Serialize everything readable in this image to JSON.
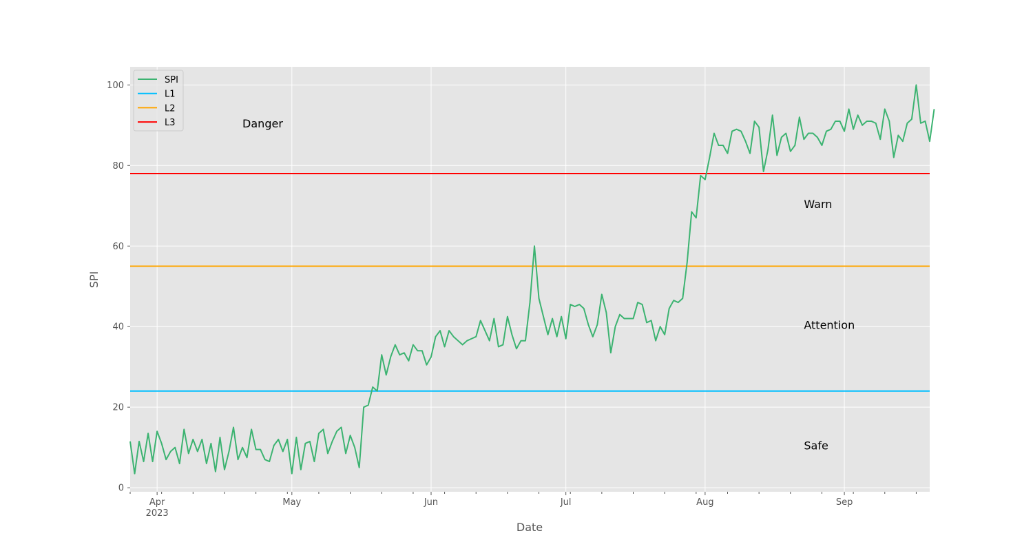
{
  "colors": {
    "plot_bg": "#e5e5e5",
    "grid": "#ffffff",
    "spi": "#3cb371",
    "l1": "#00bfff",
    "l2": "#ffa500",
    "l3": "#ff0000",
    "tick_text": "#555555",
    "label_text": "#555555"
  },
  "chart_data": {
    "type": "line",
    "xlabel": "Date",
    "ylabel": "SPI",
    "xlim": [
      "2023-03-26",
      "2023-09-20"
    ],
    "ylim": [
      -1,
      104.5
    ],
    "grid": true,
    "legend_position": "upper left",
    "x_ticks": [
      {
        "date": "2023-04-01",
        "label": "Apr",
        "sublabel": "2023"
      },
      {
        "date": "2023-05-01",
        "label": "May",
        "sublabel": ""
      },
      {
        "date": "2023-06-01",
        "label": "Jun",
        "sublabel": ""
      },
      {
        "date": "2023-07-01",
        "label": "Jul",
        "sublabel": ""
      },
      {
        "date": "2023-08-01",
        "label": "Aug",
        "sublabel": ""
      },
      {
        "date": "2023-09-01",
        "label": "Sep",
        "sublabel": ""
      }
    ],
    "y_ticks": [
      0,
      20,
      40,
      60,
      80,
      100
    ],
    "series": [
      {
        "name": "SPI",
        "start_date": "2023-03-26",
        "values": [
          11.5,
          3.5,
          11.5,
          6.5,
          13.5,
          6.5,
          14,
          11,
          7,
          9,
          10,
          6,
          14.5,
          8.5,
          12,
          9,
          12,
          6,
          11,
          4,
          12.5,
          4.5,
          9,
          15,
          7,
          10,
          7.5,
          14.5,
          9.5,
          9.5,
          7,
          6.5,
          10.5,
          12,
          9,
          12,
          3.5,
          12.5,
          4.5,
          11,
          11.5,
          6.5,
          13.5,
          14.5,
          8.5,
          11.5,
          14,
          15,
          8.5,
          13,
          10,
          5,
          20,
          20.5,
          25,
          24,
          33,
          28,
          32.5,
          35.5,
          33,
          33.5,
          31.5,
          35.5,
          34,
          34,
          30.5,
          32.5,
          37.5,
          39,
          35,
          39,
          37.5,
          36.5,
          35.5,
          36.5,
          37,
          37.5,
          41.5,
          39,
          36.5,
          42,
          35,
          35.5,
          42.5,
          38,
          34.5,
          36.5,
          36.5,
          46,
          60,
          47,
          42.5,
          38,
          42,
          37.5,
          42.5,
          37,
          45.5,
          45,
          45.5,
          44.5,
          40.5,
          37.5,
          40.5,
          48,
          43.5,
          33.5,
          40,
          43,
          42,
          42,
          42,
          46,
          45.5,
          41,
          41.5,
          36.5,
          40,
          38,
          44.5,
          46.5,
          46,
          47,
          56,
          68.5,
          67,
          77.5,
          76.5,
          82,
          88,
          85,
          85,
          83,
          88.5,
          89,
          88.5,
          86,
          83,
          91,
          89.5,
          78.5,
          84,
          92.5,
          82.5,
          87,
          88,
          83.5,
          85,
          92,
          86.5,
          88,
          88,
          87,
          85,
          88.5,
          89,
          91,
          91,
          88.5,
          94,
          89,
          92.5,
          90,
          91,
          91,
          90.5,
          86.5,
          94,
          91,
          82,
          87.5,
          86,
          90.5,
          91.5,
          100,
          90.5,
          91,
          86,
          94
        ]
      }
    ],
    "thresholds": [
      {
        "name": "L1",
        "value": 24
      },
      {
        "name": "L2",
        "value": 55
      },
      {
        "name": "L3",
        "value": 78
      }
    ],
    "annotations": [
      {
        "text": "Danger",
        "date": "2023-04-20",
        "y": 90.5
      },
      {
        "text": "Warn",
        "date": "2023-08-23",
        "y": 70.5
      },
      {
        "text": "Attention",
        "date": "2023-08-23",
        "y": 40.5
      },
      {
        "text": "Safe",
        "date": "2023-08-23",
        "y": 10.5
      }
    ]
  }
}
